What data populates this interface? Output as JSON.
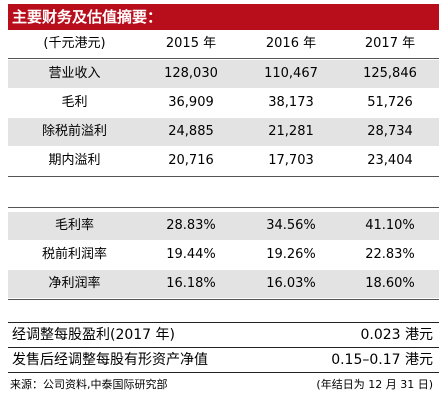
{
  "title": "主要财务及估值摘要：",
  "header": {
    "unit": "(千元港元)",
    "years": [
      "2015 年",
      "2016 年",
      "2017 年"
    ]
  },
  "financials": [
    {
      "label": "营业收入",
      "values": [
        "128,030",
        "110,467",
        "125,846"
      ]
    },
    {
      "label": "毛利",
      "values": [
        "36,909",
        "38,173",
        "51,726"
      ]
    },
    {
      "label": "除税前溢利",
      "values": [
        "24,885",
        "21,281",
        "28,734"
      ]
    },
    {
      "label": "期内溢利",
      "values": [
        "20,716",
        "17,703",
        "23,404"
      ]
    }
  ],
  "ratios": [
    {
      "label": "毛利率",
      "values": [
        "28.83%",
        "34.56%",
        "41.10%"
      ]
    },
    {
      "label": "税前利润率",
      "values": [
        "19.44%",
        "19.26%",
        "22.83%"
      ]
    },
    {
      "label": "净利润率",
      "values": [
        "16.18%",
        "16.03%",
        "18.60%"
      ]
    }
  ],
  "summary": [
    {
      "label": "经调整每股盈利(2017 年)",
      "value": "0.023 港元"
    },
    {
      "label": "发售后经调整每股有形资产净值",
      "value": "0.15–0.17 港元"
    }
  ],
  "footer": {
    "source": "来源：公司资料,中泰国际研究部",
    "fiscal_year": "(年结日为 12 月 31 日)"
  },
  "colors": {
    "title_bg": "#b80e1c",
    "row_shade": "#e3e3e3"
  }
}
